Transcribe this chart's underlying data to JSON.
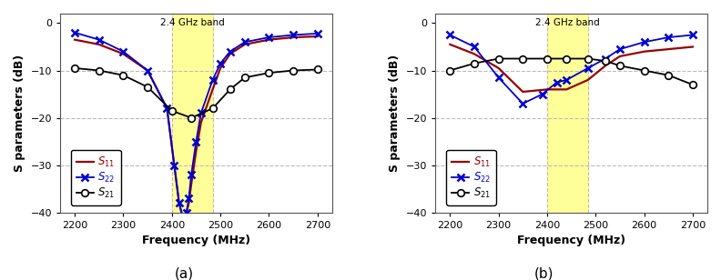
{
  "xlim": [
    2170,
    2730
  ],
  "ylim": [
    -40,
    2
  ],
  "xticks": [
    2200,
    2300,
    2400,
    2500,
    2600,
    2700
  ],
  "yticks": [
    -40,
    -30,
    -20,
    -10,
    0
  ],
  "xlabel": "Frequency (MHz)",
  "ylabel": "S parameters (dB)",
  "band_start": 2400,
  "band_end": 2484,
  "band_color": "#ffff99",
  "band_label": "2.4 GHz band",
  "label_a": "(a)",
  "label_b": "(b)",
  "freq_a_S11": [
    2200,
    2250,
    2300,
    2350,
    2390,
    2405,
    2415,
    2425,
    2430,
    2435,
    2440,
    2450,
    2460,
    2484,
    2500,
    2520,
    2550,
    2600,
    2650,
    2700
  ],
  "S11_a": [
    -3.5,
    -4.5,
    -6.5,
    -10,
    -18,
    -30,
    -38,
    -42,
    -40,
    -38,
    -34,
    -27,
    -21,
    -14,
    -9.5,
    -6.5,
    -4.5,
    -3.5,
    -3.0,
    -2.8
  ],
  "freq_a_S22": [
    2200,
    2250,
    2300,
    2350,
    2390,
    2405,
    2415,
    2425,
    2430,
    2435,
    2440,
    2450,
    2460,
    2484,
    2500,
    2520,
    2550,
    2600,
    2650,
    2700
  ],
  "S22_a": [
    -2.0,
    -3.5,
    -6.0,
    -10,
    -18,
    -30,
    -38,
    -42,
    -40,
    -37,
    -32,
    -25,
    -19,
    -12,
    -8.5,
    -6.0,
    -4.0,
    -3.0,
    -2.5,
    -2.2
  ],
  "freq_a_S21": [
    2200,
    2250,
    2300,
    2350,
    2400,
    2440,
    2484,
    2520,
    2550,
    2600,
    2650,
    2700
  ],
  "S21_a": [
    -9.5,
    -10.0,
    -11.0,
    -13.5,
    -18.5,
    -20.0,
    -18.0,
    -14.0,
    -11.5,
    -10.5,
    -10.0,
    -9.8
  ],
  "freq_b_S11": [
    2200,
    2250,
    2300,
    2350,
    2400,
    2440,
    2484,
    2520,
    2550,
    2600,
    2650,
    2700
  ],
  "S11_b": [
    -4.5,
    -6.5,
    -9.5,
    -14.5,
    -14.0,
    -14.0,
    -12.0,
    -9.0,
    -7.0,
    -6.0,
    -5.5,
    -5.0
  ],
  "freq_b_S22": [
    2200,
    2250,
    2300,
    2350,
    2390,
    2420,
    2440,
    2484,
    2520,
    2550,
    2600,
    2650,
    2700
  ],
  "S22_b": [
    -2.5,
    -5.0,
    -11.5,
    -17.0,
    -15.0,
    -12.5,
    -12.0,
    -9.5,
    -7.5,
    -5.5,
    -4.0,
    -3.0,
    -2.5
  ],
  "freq_b_S21": [
    2200,
    2250,
    2300,
    2350,
    2400,
    2440,
    2484,
    2520,
    2550,
    2600,
    2650,
    2700
  ],
  "S21_b": [
    -10.0,
    -8.5,
    -7.5,
    -7.5,
    -7.5,
    -7.5,
    -7.5,
    -8.0,
    -9.0,
    -10.0,
    -11.0,
    -13.0
  ],
  "color_S11": "#990000",
  "color_S22": "#0000cc",
  "color_S21": "#000000"
}
